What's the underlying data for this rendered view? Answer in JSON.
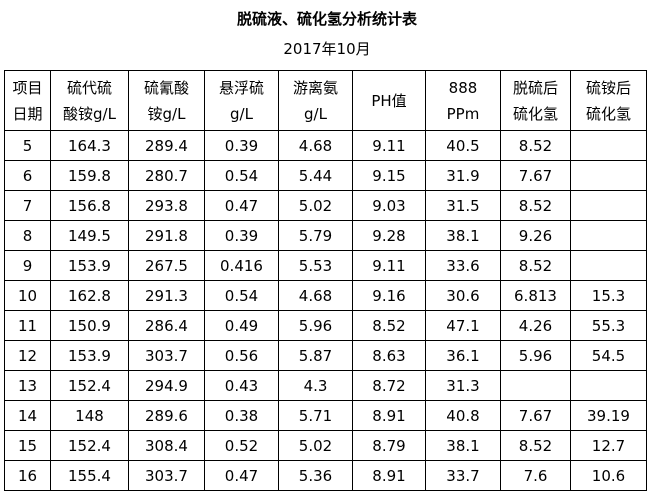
{
  "title": "脱硫液、硫化氢分析统计表",
  "subtitle": "2017年10月",
  "table": {
    "header": [
      [
        "项目",
        "日期"
      ],
      [
        "硫代硫",
        "酸铵g/L"
      ],
      [
        "硫氰酸",
        "铵g/L"
      ],
      [
        "悬浮硫",
        "g/L"
      ],
      [
        "游离氨",
        "g/L"
      ],
      [
        "PH值"
      ],
      [
        "888",
        "PPm"
      ],
      [
        "脱硫后",
        "硫化氢"
      ],
      [
        "硫铵后",
        "硫化氢"
      ]
    ],
    "rows": [
      [
        "5",
        "164.3",
        "289.4",
        "0.39",
        "4.68",
        "9.11",
        "40.5",
        "8.52",
        null
      ],
      [
        "6",
        "159.8",
        "280.7",
        "0.54",
        "5.44",
        "9.15",
        "31.9",
        "7.67",
        null
      ],
      [
        "7",
        "156.8",
        "293.8",
        "0.47",
        "5.02",
        "9.03",
        "31.5",
        "8.52",
        null
      ],
      [
        "8",
        "149.5",
        "291.8",
        "0.39",
        "5.79",
        "9.28",
        "38.1",
        "9.26",
        null
      ],
      [
        "9",
        "153.9",
        "267.5",
        "0.416",
        "5.53",
        "9.11",
        "33.6",
        "8.52",
        null
      ],
      [
        "10",
        "162.8",
        "291.3",
        "0.54",
        "4.68",
        "9.16",
        "30.6",
        "6.813",
        "15.3"
      ],
      [
        "11",
        "150.9",
        "286.4",
        "0.49",
        "5.96",
        "8.52",
        "47.1",
        "4.26",
        "55.3"
      ],
      [
        "12",
        "153.9",
        "303.7",
        "0.56",
        "5.87",
        "8.63",
        "36.1",
        "5.96",
        "54.5"
      ],
      [
        "13",
        "152.4",
        "294.9",
        "0.43",
        "4.3",
        "8.72",
        "31.3",
        null,
        null
      ],
      [
        "14",
        "148",
        "289.6",
        "0.38",
        "5.71",
        "8.91",
        "40.8",
        "7.67",
        "39.19"
      ],
      [
        "15",
        "152.4",
        "308.4",
        "0.52",
        "5.02",
        "8.79",
        "38.1",
        "8.52",
        "12.7"
      ],
      [
        "16",
        "155.4",
        "303.7",
        "0.47",
        "5.36",
        "8.91",
        "33.7",
        "7.6",
        "10.6"
      ]
    ]
  }
}
